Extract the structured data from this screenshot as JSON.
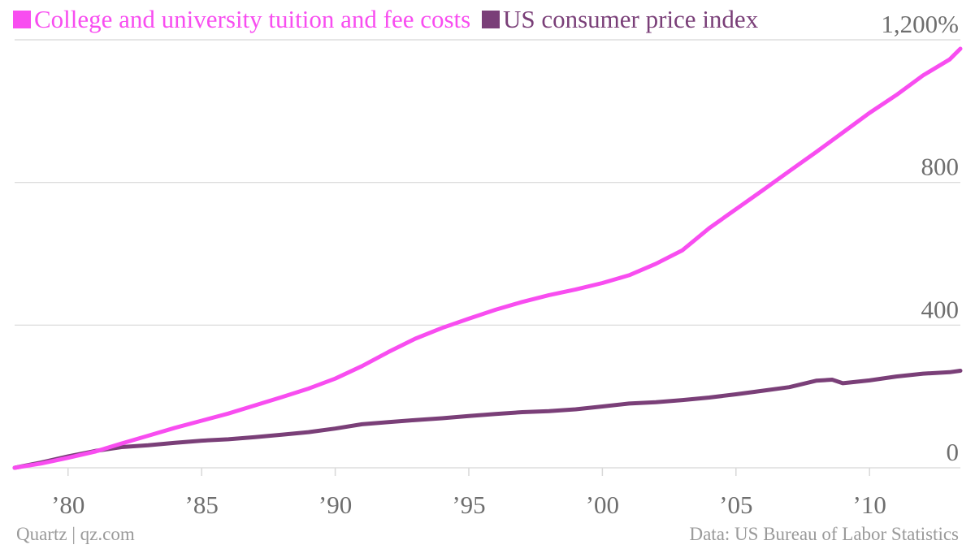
{
  "colors": {
    "tuition": "#f84df0",
    "cpi": "#7a3f78",
    "grid": "#d8d8d8",
    "axis_text": "#6e6e6e",
    "footer_text": "#9a9a9a"
  },
  "legend": {
    "tuition_label": "College and university tuition and fee costs",
    "cpi_label": "US consumer price index"
  },
  "footer": {
    "source_left": "Quartz | qz.com",
    "source_right": "Data: US Bureau of Labor Statistics"
  },
  "chart_data": {
    "type": "line",
    "title": "",
    "xlabel": "",
    "ylabel": "",
    "xlim": [
      1978,
      2013.4
    ],
    "ylim": [
      0,
      1200
    ],
    "grid": true,
    "legend_position": "top-left",
    "x_ticks": [
      {
        "value": 1980,
        "label": "’80"
      },
      {
        "value": 1985,
        "label": "’85"
      },
      {
        "value": 1990,
        "label": "’90"
      },
      {
        "value": 1995,
        "label": "’95"
      },
      {
        "value": 2000,
        "label": "’00"
      },
      {
        "value": 2005,
        "label": "’05"
      },
      {
        "value": 2010,
        "label": "’10"
      }
    ],
    "y_ticks": [
      {
        "value": 0,
        "label": "0"
      },
      {
        "value": 400,
        "label": "400"
      },
      {
        "value": 800,
        "label": "800"
      },
      {
        "value": 1200,
        "label": "1,200%"
      }
    ],
    "series": [
      {
        "name": "College and university tuition and fee costs",
        "color_key": "tuition",
        "points": [
          [
            1978,
            0
          ],
          [
            1979,
            12
          ],
          [
            1980,
            28
          ],
          [
            1981,
            45
          ],
          [
            1982,
            68
          ],
          [
            1983,
            90
          ],
          [
            1984,
            112
          ],
          [
            1985,
            132
          ],
          [
            1986,
            152
          ],
          [
            1987,
            175
          ],
          [
            1988,
            198
          ],
          [
            1989,
            222
          ],
          [
            1990,
            250
          ],
          [
            1991,
            285
          ],
          [
            1992,
            325
          ],
          [
            1993,
            362
          ],
          [
            1994,
            392
          ],
          [
            1995,
            418
          ],
          [
            1996,
            443
          ],
          [
            1997,
            465
          ],
          [
            1998,
            484
          ],
          [
            1999,
            500
          ],
          [
            2000,
            518
          ],
          [
            2001,
            540
          ],
          [
            2002,
            572
          ],
          [
            2003,
            610
          ],
          [
            2004,
            672
          ],
          [
            2005,
            725
          ],
          [
            2006,
            778
          ],
          [
            2007,
            832
          ],
          [
            2008,
            885
          ],
          [
            2009,
            940
          ],
          [
            2010,
            995
          ],
          [
            2011,
            1045
          ],
          [
            2012,
            1100
          ],
          [
            2013,
            1145
          ],
          [
            2013.4,
            1175
          ]
        ]
      },
      {
        "name": "US consumer price index",
        "color_key": "cpi",
        "points": [
          [
            1978,
            0
          ],
          [
            1979,
            15
          ],
          [
            1980,
            32
          ],
          [
            1981,
            47
          ],
          [
            1982,
            58
          ],
          [
            1983,
            63
          ],
          [
            1984,
            70
          ],
          [
            1985,
            76
          ],
          [
            1986,
            80
          ],
          [
            1987,
            86
          ],
          [
            1988,
            93
          ],
          [
            1989,
            100
          ],
          [
            1990,
            110
          ],
          [
            1991,
            122
          ],
          [
            1992,
            128
          ],
          [
            1993,
            134
          ],
          [
            1994,
            139
          ],
          [
            1995,
            145
          ],
          [
            1996,
            151
          ],
          [
            1997,
            156
          ],
          [
            1998,
            159
          ],
          [
            1999,
            164
          ],
          [
            2000,
            172
          ],
          [
            2001,
            180
          ],
          [
            2002,
            184
          ],
          [
            2003,
            190
          ],
          [
            2004,
            197
          ],
          [
            2005,
            206
          ],
          [
            2006,
            216
          ],
          [
            2007,
            226
          ],
          [
            2008,
            244
          ],
          [
            2008.6,
            247
          ],
          [
            2009,
            237
          ],
          [
            2010,
            245
          ],
          [
            2011,
            256
          ],
          [
            2012,
            264
          ],
          [
            2013,
            268
          ],
          [
            2013.4,
            272
          ]
        ]
      }
    ]
  }
}
